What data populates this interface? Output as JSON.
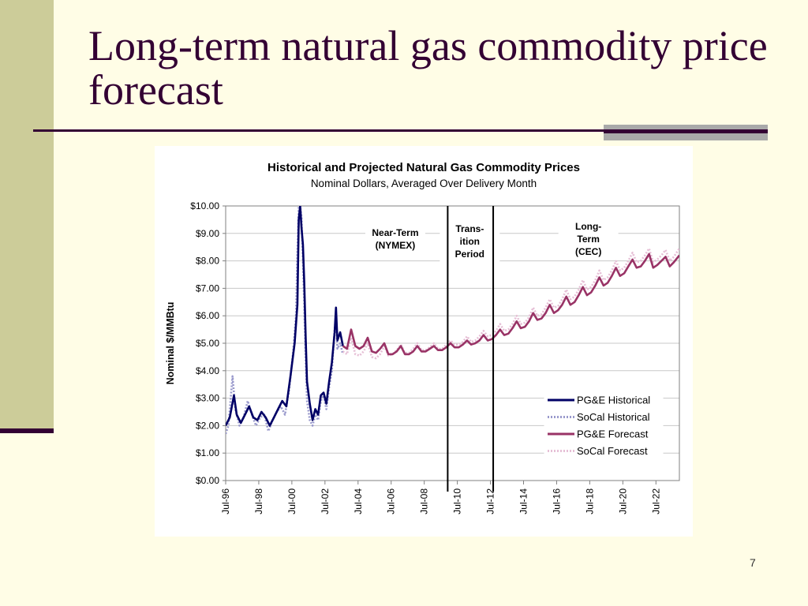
{
  "slide": {
    "title": "Long-term natural gas commodity price forecast",
    "page_number": "7",
    "colors": {
      "background": "#fffde6",
      "sidebar": "#cccc99",
      "title": "#330033",
      "rule": "#330033"
    }
  },
  "chart_data": {
    "type": "line",
    "title": "Historical and Projected Natural Gas Commodity Prices",
    "subtitle": "Nominal Dollars, Averaged Over Delivery Month",
    "ylabel": "Nominal $/MMBtu",
    "xlabel": "",
    "ylim": [
      0,
      10
    ],
    "yticks": [
      "$0.00",
      "$1.00",
      "$2.00",
      "$3.00",
      "$4.00",
      "$5.00",
      "$6.00",
      "$7.00",
      "$8.00",
      "$9.00",
      "$10.00"
    ],
    "xlim": [
      "1996-07",
      "2023-12"
    ],
    "xticks": [
      "Jul-96",
      "Jul-98",
      "Jul-00",
      "Jul-02",
      "Jul-04",
      "Jul-06",
      "Jul-08",
      "Jul-10",
      "Jul-12",
      "Jul-14",
      "Jul-16",
      "Jul-18",
      "Jul-20",
      "Jul-22"
    ],
    "grid": true,
    "legend_position": "bottom-right",
    "period_dividers": [
      "2009-12",
      "2012-09"
    ],
    "annotations": [
      {
        "text": [
          "Near-Term",
          "(NYMEX)"
        ],
        "x": "2006-10",
        "y": 8.8
      },
      {
        "text": [
          "Trans-",
          "ition",
          "Period"
        ],
        "x": "2011-04",
        "y": 8.7
      },
      {
        "text": [
          "Long-",
          "Term",
          "(CEC)"
        ],
        "x": "2018-06",
        "y": 8.8
      }
    ],
    "series": [
      {
        "name": "PG&E Historical",
        "color": "#000066",
        "style": "solid",
        "points": [
          [
            "1996-07",
            2.0
          ],
          [
            "1996-10",
            2.3
          ],
          [
            "1997-01",
            3.1
          ],
          [
            "1997-03",
            2.4
          ],
          [
            "1997-06",
            2.1
          ],
          [
            "1997-09",
            2.4
          ],
          [
            "1997-12",
            2.7
          ],
          [
            "1998-03",
            2.3
          ],
          [
            "1998-06",
            2.2
          ],
          [
            "1998-09",
            2.5
          ],
          [
            "1998-12",
            2.3
          ],
          [
            "1999-03",
            2.0
          ],
          [
            "1999-06",
            2.3
          ],
          [
            "1999-09",
            2.6
          ],
          [
            "1999-12",
            2.9
          ],
          [
            "2000-03",
            2.7
          ],
          [
            "2000-06",
            3.8
          ],
          [
            "2000-09",
            5.0
          ],
          [
            "2000-11",
            6.4
          ],
          [
            "2000-12",
            9.5
          ],
          [
            "2001-01",
            10.0
          ],
          [
            "2001-02",
            9.2
          ],
          [
            "2001-03",
            8.6
          ],
          [
            "2001-04",
            7.2
          ],
          [
            "2001-05",
            5.2
          ],
          [
            "2001-06",
            3.6
          ],
          [
            "2001-08",
            2.8
          ],
          [
            "2001-10",
            2.2
          ],
          [
            "2001-12",
            2.6
          ],
          [
            "2002-02",
            2.4
          ],
          [
            "2002-04",
            3.1
          ],
          [
            "2002-06",
            3.2
          ],
          [
            "2002-08",
            2.8
          ],
          [
            "2002-10",
            3.6
          ],
          [
            "2002-12",
            4.3
          ],
          [
            "2003-02",
            5.4
          ],
          [
            "2003-03",
            6.3
          ],
          [
            "2003-04",
            5.1
          ],
          [
            "2003-06",
            5.4
          ],
          [
            "2003-08",
            4.9
          ]
        ]
      },
      {
        "name": "SoCal Historical",
        "color": "#9999cc",
        "style": "dashed",
        "points": [
          [
            "1996-07",
            1.7
          ],
          [
            "1996-09",
            2.0
          ],
          [
            "1996-12",
            3.8
          ],
          [
            "1997-02",
            2.6
          ],
          [
            "1997-05",
            2.0
          ],
          [
            "1997-08",
            2.3
          ],
          [
            "1997-11",
            2.9
          ],
          [
            "1998-02",
            2.4
          ],
          [
            "1998-05",
            2.0
          ],
          [
            "1998-08",
            2.3
          ],
          [
            "1998-11",
            2.4
          ],
          [
            "1999-02",
            1.8
          ],
          [
            "1999-05",
            2.2
          ],
          [
            "1999-08",
            2.5
          ],
          [
            "1999-11",
            2.7
          ],
          [
            "2000-02",
            2.4
          ],
          [
            "2000-05",
            3.3
          ],
          [
            "2000-08",
            4.7
          ],
          [
            "2000-10",
            6.0
          ],
          [
            "2000-11",
            8.3
          ],
          [
            "2000-12",
            10.0
          ],
          [
            "2001-01",
            10.0
          ],
          [
            "2001-02",
            9.6
          ],
          [
            "2001-03",
            8.0
          ],
          [
            "2001-04",
            6.4
          ],
          [
            "2001-05",
            4.4
          ],
          [
            "2001-06",
            2.9
          ],
          [
            "2001-08",
            2.2
          ],
          [
            "2001-10",
            2.0
          ],
          [
            "2001-12",
            2.4
          ],
          [
            "2002-02",
            2.2
          ],
          [
            "2002-04",
            2.9
          ],
          [
            "2002-06",
            3.1
          ],
          [
            "2002-08",
            2.6
          ],
          [
            "2002-10",
            3.4
          ],
          [
            "2002-12",
            4.0
          ],
          [
            "2003-02",
            5.5
          ],
          [
            "2003-03",
            6.0
          ],
          [
            "2003-04",
            4.8
          ],
          [
            "2003-06",
            5.0
          ],
          [
            "2003-08",
            4.6
          ]
        ]
      },
      {
        "name": "PG&E Forecast",
        "color": "#993366",
        "style": "solid",
        "points": [
          [
            "2003-08",
            4.9
          ],
          [
            "2003-11",
            4.8
          ],
          [
            "2004-02",
            5.5
          ],
          [
            "2004-05",
            4.9
          ],
          [
            "2004-08",
            4.8
          ],
          [
            "2004-11",
            4.9
          ],
          [
            "2005-02",
            5.2
          ],
          [
            "2005-05",
            4.7
          ],
          [
            "2005-08",
            4.65
          ],
          [
            "2005-11",
            4.8
          ],
          [
            "2006-02",
            5.0
          ],
          [
            "2006-05",
            4.6
          ],
          [
            "2006-08",
            4.6
          ],
          [
            "2006-11",
            4.7
          ],
          [
            "2007-02",
            4.9
          ],
          [
            "2007-05",
            4.6
          ],
          [
            "2007-08",
            4.6
          ],
          [
            "2007-11",
            4.7
          ],
          [
            "2008-02",
            4.9
          ],
          [
            "2008-05",
            4.7
          ],
          [
            "2008-08",
            4.7
          ],
          [
            "2008-11",
            4.8
          ],
          [
            "2009-02",
            4.9
          ],
          [
            "2009-05",
            4.75
          ],
          [
            "2009-08",
            4.75
          ],
          [
            "2009-11",
            4.85
          ],
          [
            "2010-02",
            5.0
          ],
          [
            "2010-05",
            4.85
          ],
          [
            "2010-08",
            4.85
          ],
          [
            "2010-11",
            4.95
          ],
          [
            "2011-02",
            5.1
          ],
          [
            "2011-05",
            4.95
          ],
          [
            "2011-08",
            5.0
          ],
          [
            "2011-11",
            5.1
          ],
          [
            "2012-02",
            5.3
          ],
          [
            "2012-05",
            5.1
          ],
          [
            "2012-08",
            5.15
          ],
          [
            "2012-11",
            5.3
          ],
          [
            "2013-02",
            5.5
          ],
          [
            "2013-05",
            5.3
          ],
          [
            "2013-08",
            5.35
          ],
          [
            "2013-11",
            5.55
          ],
          [
            "2014-02",
            5.8
          ],
          [
            "2014-05",
            5.55
          ],
          [
            "2014-08",
            5.6
          ],
          [
            "2014-11",
            5.8
          ],
          [
            "2015-02",
            6.1
          ],
          [
            "2015-05",
            5.85
          ],
          [
            "2015-08",
            5.9
          ],
          [
            "2015-11",
            6.1
          ],
          [
            "2016-02",
            6.4
          ],
          [
            "2016-05",
            6.1
          ],
          [
            "2016-08",
            6.2
          ],
          [
            "2016-11",
            6.4
          ],
          [
            "2017-02",
            6.7
          ],
          [
            "2017-05",
            6.4
          ],
          [
            "2017-08",
            6.5
          ],
          [
            "2017-11",
            6.75
          ],
          [
            "2018-02",
            7.05
          ],
          [
            "2018-05",
            6.75
          ],
          [
            "2018-08",
            6.85
          ],
          [
            "2018-11",
            7.1
          ],
          [
            "2019-02",
            7.4
          ],
          [
            "2019-05",
            7.1
          ],
          [
            "2019-08",
            7.2
          ],
          [
            "2019-11",
            7.45
          ],
          [
            "2020-02",
            7.75
          ],
          [
            "2020-05",
            7.45
          ],
          [
            "2020-08",
            7.55
          ],
          [
            "2020-11",
            7.8
          ],
          [
            "2021-02",
            8.05
          ],
          [
            "2021-05",
            7.75
          ],
          [
            "2021-08",
            7.8
          ],
          [
            "2021-11",
            8.0
          ],
          [
            "2022-02",
            8.25
          ],
          [
            "2022-05",
            7.75
          ],
          [
            "2022-08",
            7.85
          ],
          [
            "2022-11",
            8.0
          ],
          [
            "2023-02",
            8.15
          ],
          [
            "2023-05",
            7.8
          ],
          [
            "2023-08",
            7.95
          ],
          [
            "2023-12",
            8.2
          ]
        ]
      },
      {
        "name": "SoCal Forecast",
        "color": "#e6bfd6",
        "style": "dashed",
        "points": [
          [
            "2003-08",
            4.7
          ],
          [
            "2003-11",
            4.6
          ],
          [
            "2004-02",
            5.2
          ],
          [
            "2004-05",
            4.6
          ],
          [
            "2004-08",
            4.55
          ],
          [
            "2004-11",
            4.7
          ],
          [
            "2005-02",
            5.0
          ],
          [
            "2005-05",
            4.5
          ],
          [
            "2005-08",
            4.45
          ],
          [
            "2005-11",
            4.6
          ],
          [
            "2006-02",
            4.9
          ],
          [
            "2006-05",
            4.55
          ],
          [
            "2006-08",
            4.6
          ],
          [
            "2006-11",
            4.75
          ],
          [
            "2007-02",
            4.95
          ],
          [
            "2007-05",
            4.65
          ],
          [
            "2007-08",
            4.65
          ],
          [
            "2007-11",
            4.8
          ],
          [
            "2008-02",
            5.0
          ],
          [
            "2008-05",
            4.75
          ],
          [
            "2008-08",
            4.75
          ],
          [
            "2008-11",
            4.85
          ],
          [
            "2009-02",
            5.0
          ],
          [
            "2009-05",
            4.8
          ],
          [
            "2009-08",
            4.8
          ],
          [
            "2009-11",
            4.95
          ],
          [
            "2010-02",
            5.1
          ],
          [
            "2010-05",
            4.95
          ],
          [
            "2010-08",
            4.95
          ],
          [
            "2010-11",
            5.05
          ],
          [
            "2011-02",
            5.25
          ],
          [
            "2011-05",
            5.05
          ],
          [
            "2011-08",
            5.1
          ],
          [
            "2011-11",
            5.25
          ],
          [
            "2012-02",
            5.45
          ],
          [
            "2012-05",
            5.25
          ],
          [
            "2012-08",
            5.3
          ],
          [
            "2012-11",
            5.45
          ],
          [
            "2013-02",
            5.7
          ],
          [
            "2013-05",
            5.45
          ],
          [
            "2013-08",
            5.5
          ],
          [
            "2013-11",
            5.7
          ],
          [
            "2014-02",
            6.0
          ],
          [
            "2014-05",
            5.7
          ],
          [
            "2014-08",
            5.75
          ],
          [
            "2014-11",
            5.95
          ],
          [
            "2015-02",
            6.3
          ],
          [
            "2015-05",
            6.0
          ],
          [
            "2015-08",
            6.05
          ],
          [
            "2015-11",
            6.3
          ],
          [
            "2016-02",
            6.6
          ],
          [
            "2016-05",
            6.3
          ],
          [
            "2016-08",
            6.35
          ],
          [
            "2016-11",
            6.6
          ],
          [
            "2017-02",
            6.95
          ],
          [
            "2017-05",
            6.6
          ],
          [
            "2017-08",
            6.7
          ],
          [
            "2017-11",
            6.95
          ],
          [
            "2018-02",
            7.3
          ],
          [
            "2018-05",
            6.95
          ],
          [
            "2018-08",
            7.05
          ],
          [
            "2018-11",
            7.3
          ],
          [
            "2019-02",
            7.65
          ],
          [
            "2019-05",
            7.3
          ],
          [
            "2019-08",
            7.4
          ],
          [
            "2019-11",
            7.65
          ],
          [
            "2020-02",
            8.0
          ],
          [
            "2020-05",
            7.65
          ],
          [
            "2020-08",
            7.75
          ],
          [
            "2020-11",
            8.0
          ],
          [
            "2021-02",
            8.3
          ],
          [
            "2021-05",
            7.95
          ],
          [
            "2021-08",
            8.0
          ],
          [
            "2021-11",
            8.2
          ],
          [
            "2022-02",
            8.45
          ],
          [
            "2022-05",
            7.95
          ],
          [
            "2022-08",
            8.05
          ],
          [
            "2022-11",
            8.2
          ],
          [
            "2023-02",
            8.4
          ],
          [
            "2023-05",
            8.0
          ],
          [
            "2023-08",
            8.15
          ],
          [
            "2023-12",
            8.45
          ]
        ]
      }
    ]
  }
}
